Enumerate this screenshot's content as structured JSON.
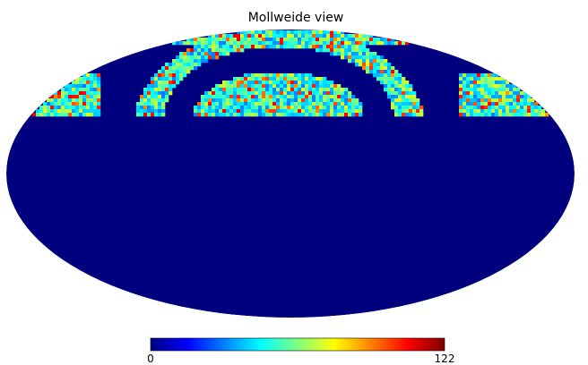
{
  "chart_data": {
    "type": "heatmap",
    "projection": "mollweide",
    "title": "Mollweide view",
    "colormap": "jet",
    "colorbar": {
      "min": 0,
      "max": 122,
      "min_label": "0",
      "max_label": "122",
      "placement": "bottom"
    },
    "background_color": "#00007f",
    "grid": false,
    "legend": "none"
  }
}
